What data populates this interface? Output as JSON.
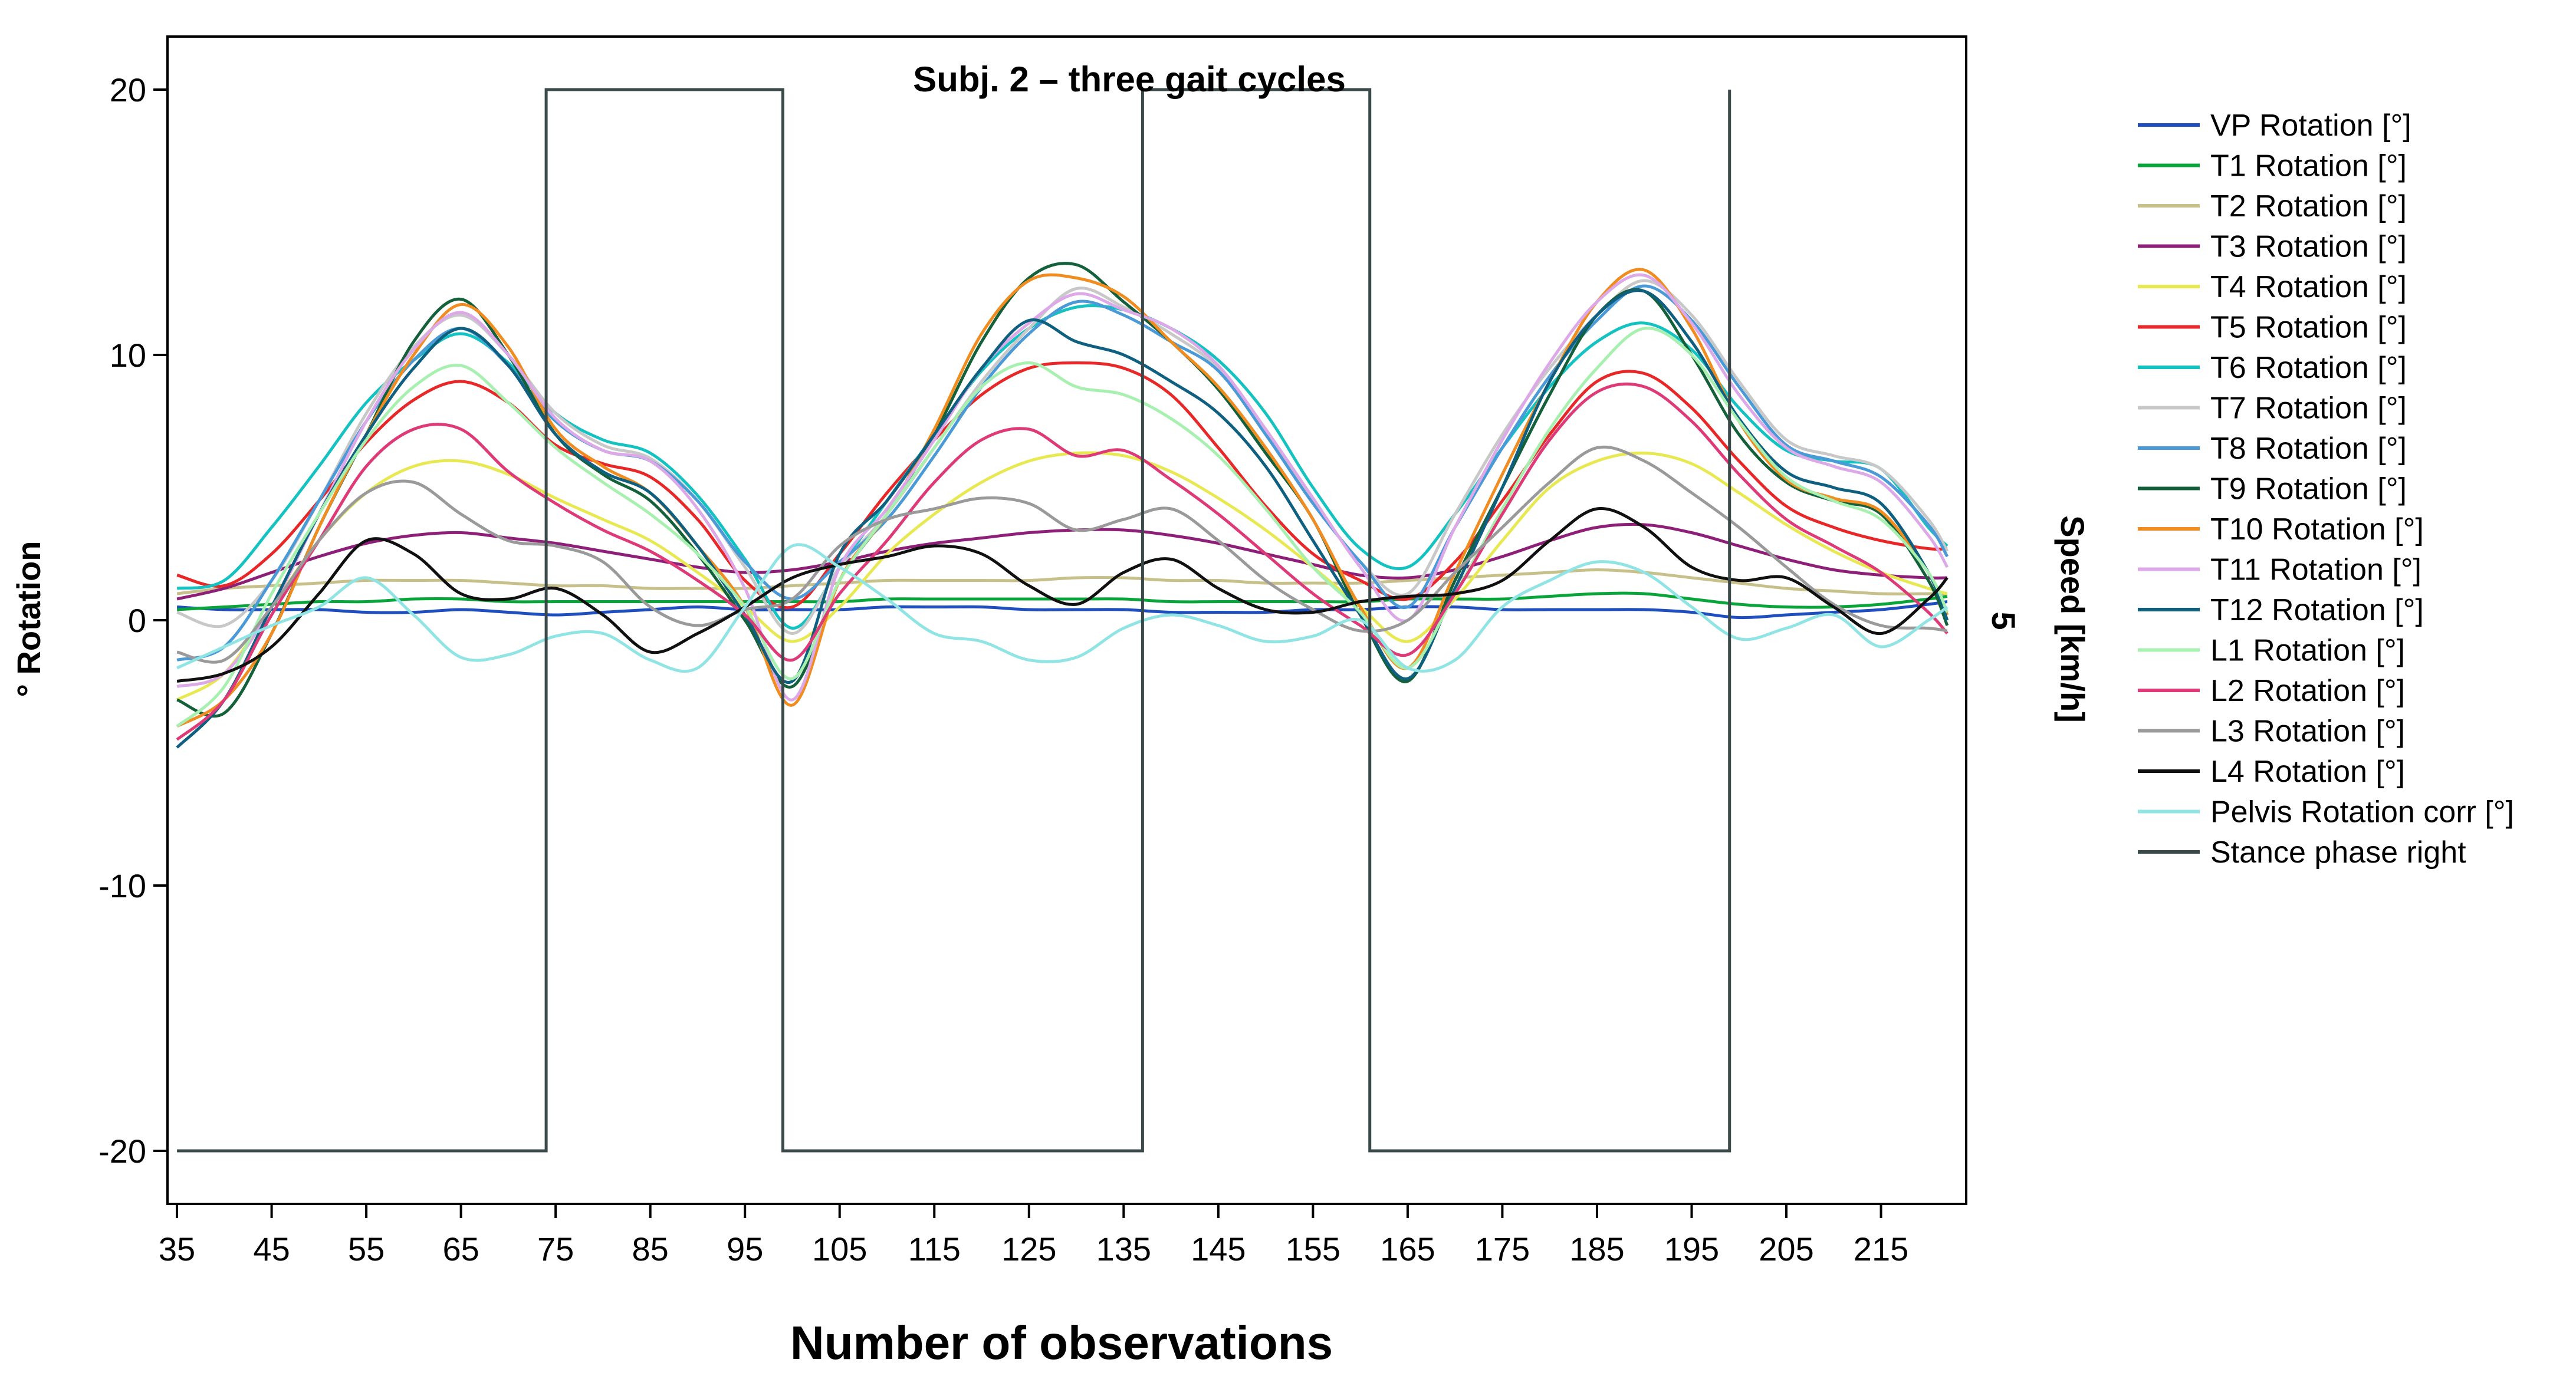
{
  "chart_data": {
    "type": "line",
    "title": "Subj. 2 – three gait cycles",
    "xlabel": "Number of observations",
    "ylabel": "° Rotation",
    "y2label": "Speed [km/h]",
    "y2tick": "5",
    "xlim": [
      34,
      224
    ],
    "ylim": [
      -22,
      22
    ],
    "xticks": [
      35,
      45,
      55,
      65,
      75,
      85,
      95,
      105,
      115,
      125,
      135,
      145,
      155,
      165,
      175,
      185,
      195,
      205,
      215
    ],
    "yticks": [
      20,
      10,
      0,
      -10,
      -20
    ],
    "ytick_labels": [
      "20",
      "10",
      "0",
      "-10",
      "-20"
    ],
    "x": [
      35,
      40,
      45,
      50,
      55,
      60,
      65,
      70,
      75,
      80,
      85,
      90,
      95,
      100,
      105,
      110,
      115,
      120,
      125,
      130,
      135,
      140,
      145,
      150,
      155,
      160,
      165,
      170,
      175,
      180,
      185,
      190,
      195,
      200,
      205,
      210,
      215,
      220,
      222
    ],
    "series": [
      {
        "name": "VP Rotation [°]",
        "color": "#1f4fbf",
        "values": [
          0.5,
          0.4,
          0.4,
          0.4,
          0.3,
          0.3,
          0.4,
          0.3,
          0.2,
          0.3,
          0.4,
          0.5,
          0.4,
          0.4,
          0.4,
          0.5,
          0.5,
          0.5,
          0.4,
          0.4,
          0.4,
          0.3,
          0.3,
          0.3,
          0.4,
          0.4,
          0.5,
          0.5,
          0.4,
          0.4,
          0.4,
          0.4,
          0.3,
          0.1,
          0.2,
          0.3,
          0.4,
          0.6,
          0.7
        ]
      },
      {
        "name": "T1 Rotation [°]",
        "color": "#0aa53a",
        "values": [
          0.4,
          0.5,
          0.6,
          0.7,
          0.7,
          0.8,
          0.8,
          0.7,
          0.7,
          0.7,
          0.7,
          0.7,
          0.7,
          0.7,
          0.7,
          0.8,
          0.8,
          0.8,
          0.8,
          0.8,
          0.8,
          0.7,
          0.7,
          0.7,
          0.7,
          0.7,
          0.8,
          0.8,
          0.8,
          0.9,
          1.0,
          1.0,
          0.8,
          0.6,
          0.5,
          0.5,
          0.6,
          0.8,
          0.9
        ]
      },
      {
        "name": "T2 Rotation [°]",
        "color": "#c8c08a",
        "values": [
          1.0,
          1.2,
          1.3,
          1.4,
          1.5,
          1.5,
          1.5,
          1.4,
          1.3,
          1.3,
          1.2,
          1.2,
          1.2,
          1.3,
          1.4,
          1.5,
          1.5,
          1.5,
          1.5,
          1.6,
          1.6,
          1.5,
          1.5,
          1.4,
          1.4,
          1.4,
          1.5,
          1.6,
          1.7,
          1.8,
          1.9,
          1.8,
          1.6,
          1.4,
          1.2,
          1.1,
          1.0,
          1.0,
          1.0
        ]
      },
      {
        "name": "T3 Rotation [°]",
        "color": "#8e1f78",
        "values": [
          0.8,
          1.2,
          1.8,
          2.4,
          2.9,
          3.2,
          3.3,
          3.1,
          2.9,
          2.6,
          2.3,
          2.0,
          1.8,
          1.9,
          2.2,
          2.6,
          2.9,
          3.1,
          3.3,
          3.4,
          3.4,
          3.2,
          2.9,
          2.5,
          2.1,
          1.7,
          1.6,
          1.9,
          2.4,
          3.0,
          3.5,
          3.6,
          3.3,
          2.8,
          2.3,
          1.9,
          1.7,
          1.6,
          1.6
        ]
      },
      {
        "name": "T4 Rotation [°]",
        "color": "#e8e852",
        "values": [
          -3.0,
          -2.0,
          0.5,
          3.0,
          4.8,
          5.8,
          6.0,
          5.5,
          4.6,
          3.8,
          3.0,
          1.8,
          0.5,
          -0.8,
          0.5,
          2.5,
          4.0,
          5.2,
          6.0,
          6.3,
          6.2,
          5.6,
          4.6,
          3.4,
          2.0,
          0.5,
          -0.8,
          0.8,
          3.0,
          5.0,
          6.0,
          6.3,
          5.9,
          4.8,
          3.6,
          2.6,
          1.8,
          1.2,
          1.0
        ]
      },
      {
        "name": "T5 Rotation [°]",
        "color": "#e82828",
        "values": [
          1.7,
          1.3,
          2.5,
          4.5,
          6.7,
          8.3,
          9.0,
          8.2,
          6.6,
          5.9,
          5.4,
          3.8,
          1.5,
          0.5,
          2.5,
          4.8,
          6.8,
          8.5,
          9.5,
          9.7,
          9.5,
          8.5,
          6.5,
          4.3,
          2.5,
          1.5,
          0.8,
          2.2,
          4.5,
          7.0,
          9.0,
          9.3,
          8.0,
          6.0,
          4.3,
          3.5,
          3.0,
          2.7,
          2.7
        ]
      },
      {
        "name": "T6 Rotation [°]",
        "color": "#14c2c2",
        "values": [
          1.2,
          1.5,
          3.5,
          5.8,
          8.2,
          9.8,
          10.8,
          9.7,
          7.8,
          6.8,
          6.3,
          4.7,
          2.3,
          -0.3,
          2.0,
          4.5,
          7.0,
          9.4,
          11.0,
          11.8,
          11.7,
          11.0,
          9.8,
          7.8,
          5.0,
          2.7,
          2.0,
          4.0,
          6.5,
          8.8,
          10.5,
          11.2,
          10.2,
          8.0,
          6.4,
          6.0,
          5.7,
          3.5,
          2.8
        ]
      },
      {
        "name": "T7 Rotation [°]",
        "color": "#c8c8c8",
        "values": [
          0.3,
          -0.2,
          1.5,
          4.5,
          7.8,
          10.3,
          11.5,
          10.0,
          7.8,
          6.6,
          6.1,
          4.5,
          2.0,
          -0.5,
          2.0,
          4.0,
          6.5,
          9.0,
          11.0,
          12.5,
          11.8,
          10.8,
          9.5,
          7.2,
          4.5,
          2.2,
          1.0,
          4.0,
          7.0,
          9.5,
          11.5,
          12.8,
          11.5,
          9.0,
          6.8,
          6.2,
          5.7,
          3.8,
          2.6
        ]
      },
      {
        "name": "T8 Rotation [°]",
        "color": "#4a9ad8",
        "values": [
          -1.5,
          -1.0,
          1.5,
          4.5,
          7.5,
          9.8,
          11.0,
          9.6,
          7.5,
          6.4,
          6.0,
          4.5,
          2.2,
          0.8,
          2.2,
          3.8,
          6.2,
          8.8,
          10.8,
          12.0,
          11.5,
          10.5,
          9.4,
          7.0,
          4.4,
          2.2,
          0.5,
          3.5,
          6.5,
          9.2,
          11.3,
          12.6,
          11.3,
          8.8,
          6.6,
          6.0,
          5.4,
          3.6,
          2.4
        ]
      },
      {
        "name": "T9 Rotation [°]",
        "color": "#13603a",
        "values": [
          -3.0,
          -3.5,
          -0.5,
          3.5,
          7.0,
          10.5,
          12.1,
          10.0,
          7.0,
          5.5,
          4.5,
          2.5,
          0.0,
          -2.5,
          1.5,
          4.0,
          7.0,
          10.5,
          12.9,
          13.4,
          12.0,
          10.5,
          8.7,
          6.3,
          3.8,
          0.2,
          -2.3,
          1.5,
          5.0,
          8.5,
          11.5,
          12.4,
          10.0,
          7.0,
          5.2,
          4.5,
          4.0,
          1.5,
          -0.2
        ]
      },
      {
        "name": "T10 Rotation [°]",
        "color": "#f08c20",
        "values": [
          -4.0,
          -3.0,
          -0.5,
          3.5,
          7.0,
          10.0,
          11.9,
          10.3,
          7.2,
          5.8,
          4.8,
          2.8,
          0.5,
          -3.2,
          1.5,
          4.0,
          7.2,
          10.8,
          12.8,
          12.9,
          12.2,
          10.5,
          8.8,
          6.5,
          3.8,
          0.5,
          -1.8,
          1.8,
          5.5,
          9.0,
          12.0,
          13.2,
          11.0,
          7.5,
          5.3,
          4.6,
          4.1,
          1.8,
          0.2
        ]
      },
      {
        "name": "T11 Rotation [°]",
        "color": "#dca8e8",
        "values": [
          -2.5,
          -2.0,
          0.5,
          4.0,
          7.5,
          10.2,
          11.6,
          10.0,
          7.6,
          6.4,
          6.0,
          4.2,
          1.2,
          -3.0,
          2.0,
          4.2,
          6.8,
          9.5,
          11.2,
          12.3,
          11.7,
          11.0,
          9.6,
          7.2,
          4.6,
          2.0,
          0.0,
          3.5,
          6.8,
          9.7,
          12.0,
          13.0,
          11.2,
          8.5,
          6.5,
          5.8,
          5.2,
          3.2,
          2.0
        ]
      },
      {
        "name": "T12 Rotation [°]",
        "color": "#0f5f80",
        "values": [
          -4.8,
          -3.0,
          0.5,
          4.0,
          7.0,
          9.5,
          11.0,
          9.6,
          7.0,
          5.6,
          4.8,
          2.8,
          0.2,
          -2.3,
          2.5,
          4.5,
          7.0,
          9.5,
          11.3,
          10.5,
          10.0,
          9.0,
          7.8,
          5.8,
          3.0,
          0.2,
          -2.2,
          1.2,
          5.0,
          9.0,
          11.5,
          12.4,
          10.5,
          7.6,
          5.6,
          5.0,
          4.4,
          1.8,
          0.0
        ]
      },
      {
        "name": "L1 Rotation [°]",
        "color": "#a8f0b0",
        "values": [
          -4.0,
          -2.5,
          1.0,
          4.0,
          6.8,
          8.8,
          9.6,
          8.2,
          6.5,
          5.2,
          4.0,
          2.5,
          0.5,
          -2.2,
          1.5,
          4.0,
          6.5,
          8.8,
          9.7,
          8.8,
          8.5,
          7.6,
          6.2,
          4.2,
          2.0,
          0.3,
          -1.8,
          1.0,
          4.2,
          7.2,
          9.5,
          11.0,
          10.0,
          7.5,
          5.4,
          4.5,
          3.8,
          1.8,
          0.3
        ]
      },
      {
        "name": "L2 Rotation [°]",
        "color": "#de3a78",
        "values": [
          -4.5,
          -3.0,
          0.2,
          3.0,
          5.8,
          7.2,
          7.2,
          5.6,
          4.4,
          3.4,
          2.6,
          1.5,
          0.2,
          -1.5,
          1.0,
          3.0,
          5.2,
          6.8,
          7.2,
          6.2,
          6.4,
          5.3,
          4.0,
          2.5,
          1.0,
          -0.2,
          -1.3,
          1.0,
          4.0,
          6.8,
          8.6,
          8.8,
          7.5,
          5.5,
          3.8,
          2.8,
          1.8,
          0.3,
          -0.5
        ]
      },
      {
        "name": "L3 Rotation [°]",
        "color": "#9a9a9a",
        "values": [
          -1.2,
          -1.5,
          0.5,
          3.0,
          4.8,
          5.2,
          4.0,
          3.0,
          2.8,
          2.2,
          0.5,
          -0.2,
          0.4,
          0.8,
          2.8,
          3.8,
          4.2,
          4.6,
          4.4,
          3.4,
          3.8,
          4.2,
          3.0,
          1.5,
          0.4,
          -0.4,
          0.0,
          1.8,
          3.5,
          5.2,
          6.5,
          6.0,
          4.8,
          3.5,
          2.0,
          0.6,
          -0.2,
          -0.3,
          -0.4
        ]
      },
      {
        "name": "L4 Rotation [°]",
        "color": "#101010",
        "values": [
          -2.3,
          -2.0,
          -1.0,
          1.0,
          3.0,
          2.5,
          1.0,
          0.8,
          1.2,
          0.2,
          -1.2,
          -0.5,
          0.5,
          1.6,
          2.1,
          2.4,
          2.8,
          2.5,
          1.3,
          0.6,
          1.8,
          2.3,
          1.2,
          0.4,
          0.3,
          0.7,
          0.9,
          1.0,
          1.5,
          3.0,
          4.2,
          3.5,
          2.0,
          1.5,
          1.6,
          0.5,
          -0.5,
          0.8,
          1.6
        ]
      },
      {
        "name": "Pelvis Rotation corr [°]",
        "color": "#90e4e4",
        "values": [
          -1.8,
          -1.0,
          -0.2,
          0.5,
          1.6,
          0.2,
          -1.4,
          -1.3,
          -0.6,
          -0.5,
          -1.5,
          -1.8,
          0.5,
          2.8,
          2.0,
          0.8,
          -0.5,
          -0.8,
          -1.5,
          -1.4,
          -0.3,
          0.2,
          -0.2,
          -0.8,
          -0.6,
          0.0,
          -1.8,
          -1.5,
          0.5,
          1.5,
          2.2,
          1.8,
          0.5,
          -0.7,
          -0.3,
          0.2,
          -1.0,
          0.0,
          0.5
        ]
      },
      {
        "name": "Stance phase right",
        "color": "#3a4a4a",
        "type": "step",
        "points": [
          [
            35,
            -20
          ],
          [
            74,
            -20
          ],
          [
            74,
            20
          ],
          [
            99,
            20
          ],
          [
            99,
            -20
          ],
          [
            137,
            -20
          ],
          [
            137,
            20
          ],
          [
            161,
            20
          ],
          [
            161,
            -20
          ],
          [
            199,
            -20
          ],
          [
            199,
            20
          ]
        ]
      }
    ]
  }
}
